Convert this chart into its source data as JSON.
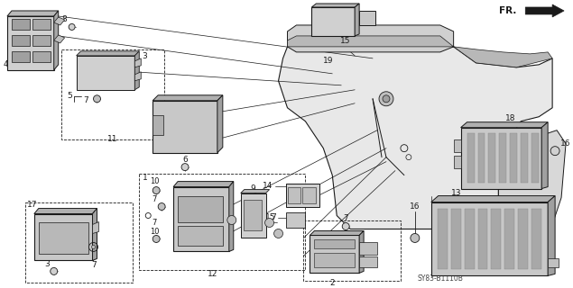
{
  "bg_color": "#ffffff",
  "line_color": "#1a1a1a",
  "gray_light": "#c8c8c8",
  "gray_med": "#a0a0a0",
  "gray_dark": "#707070",
  "watermark": "SY83-B1110B",
  "fig_w": 6.35,
  "fig_h": 3.2,
  "dpi": 100
}
